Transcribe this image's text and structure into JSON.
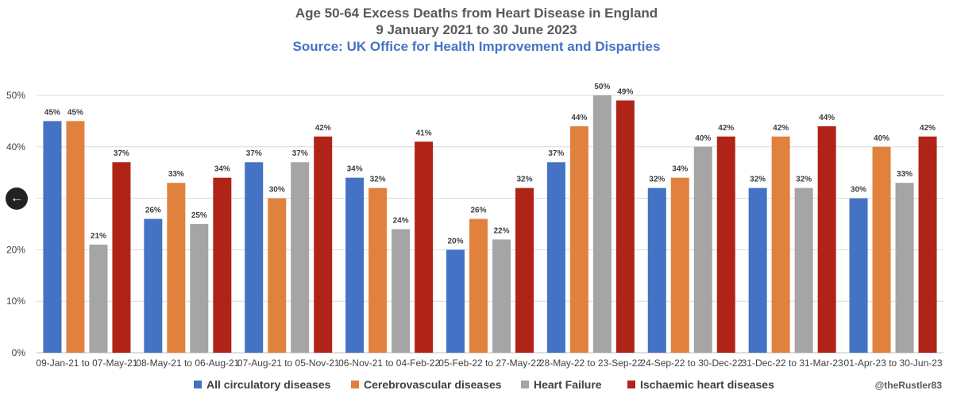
{
  "chart_data": {
    "type": "bar",
    "title": "Age 50-64 Excess Deaths from Heart Disease in England",
    "subtitle": "9 January 2021 to 30 June 2023",
    "source": "Source: UK Office for Health Improvement and Disparties",
    "xlabel": "",
    "ylabel": "",
    "ylim": [
      0,
      50
    ],
    "yticks": [
      "0%",
      "10%",
      "20%",
      "30%",
      "40%",
      "50%"
    ],
    "ytick_values": [
      0,
      10,
      20,
      30,
      40,
      50
    ],
    "grid": true,
    "legend_position": "bottom",
    "categories": [
      "09-Jan-21 to 07-May-21",
      "08-May-21 to 06-Aug-21",
      "07-Aug-21 to 05-Nov-21",
      "06-Nov-21 to 04-Feb-22",
      "05-Feb-22 to 27-May-22",
      "28-May-22 to 23-Sep-22",
      "24-Sep-22 to 30-Dec-22",
      "31-Dec-22 to 31-Mar-23",
      "01-Apr-23 to 30-Jun-23"
    ],
    "series": [
      {
        "name": "All circulatory diseases",
        "color": "#4472c4",
        "values": [
          45,
          26,
          37,
          34,
          20,
          37,
          32,
          32,
          30
        ]
      },
      {
        "name": "Cerebrovascular diseases",
        "color": "#e0823d",
        "values": [
          45,
          33,
          30,
          32,
          26,
          44,
          34,
          42,
          40
        ]
      },
      {
        "name": "Heart Failure",
        "color": "#a5a5a5",
        "values": [
          21,
          25,
          37,
          24,
          22,
          50,
          40,
          32,
          33
        ]
      },
      {
        "name": "Ischaemic heart diseases",
        "color": "#b02418",
        "values": [
          37,
          34,
          42,
          41,
          32,
          49,
          42,
          44,
          42
        ]
      }
    ],
    "value_suffix": "%"
  },
  "credit": "@theRustler83",
  "back_icon": "←"
}
